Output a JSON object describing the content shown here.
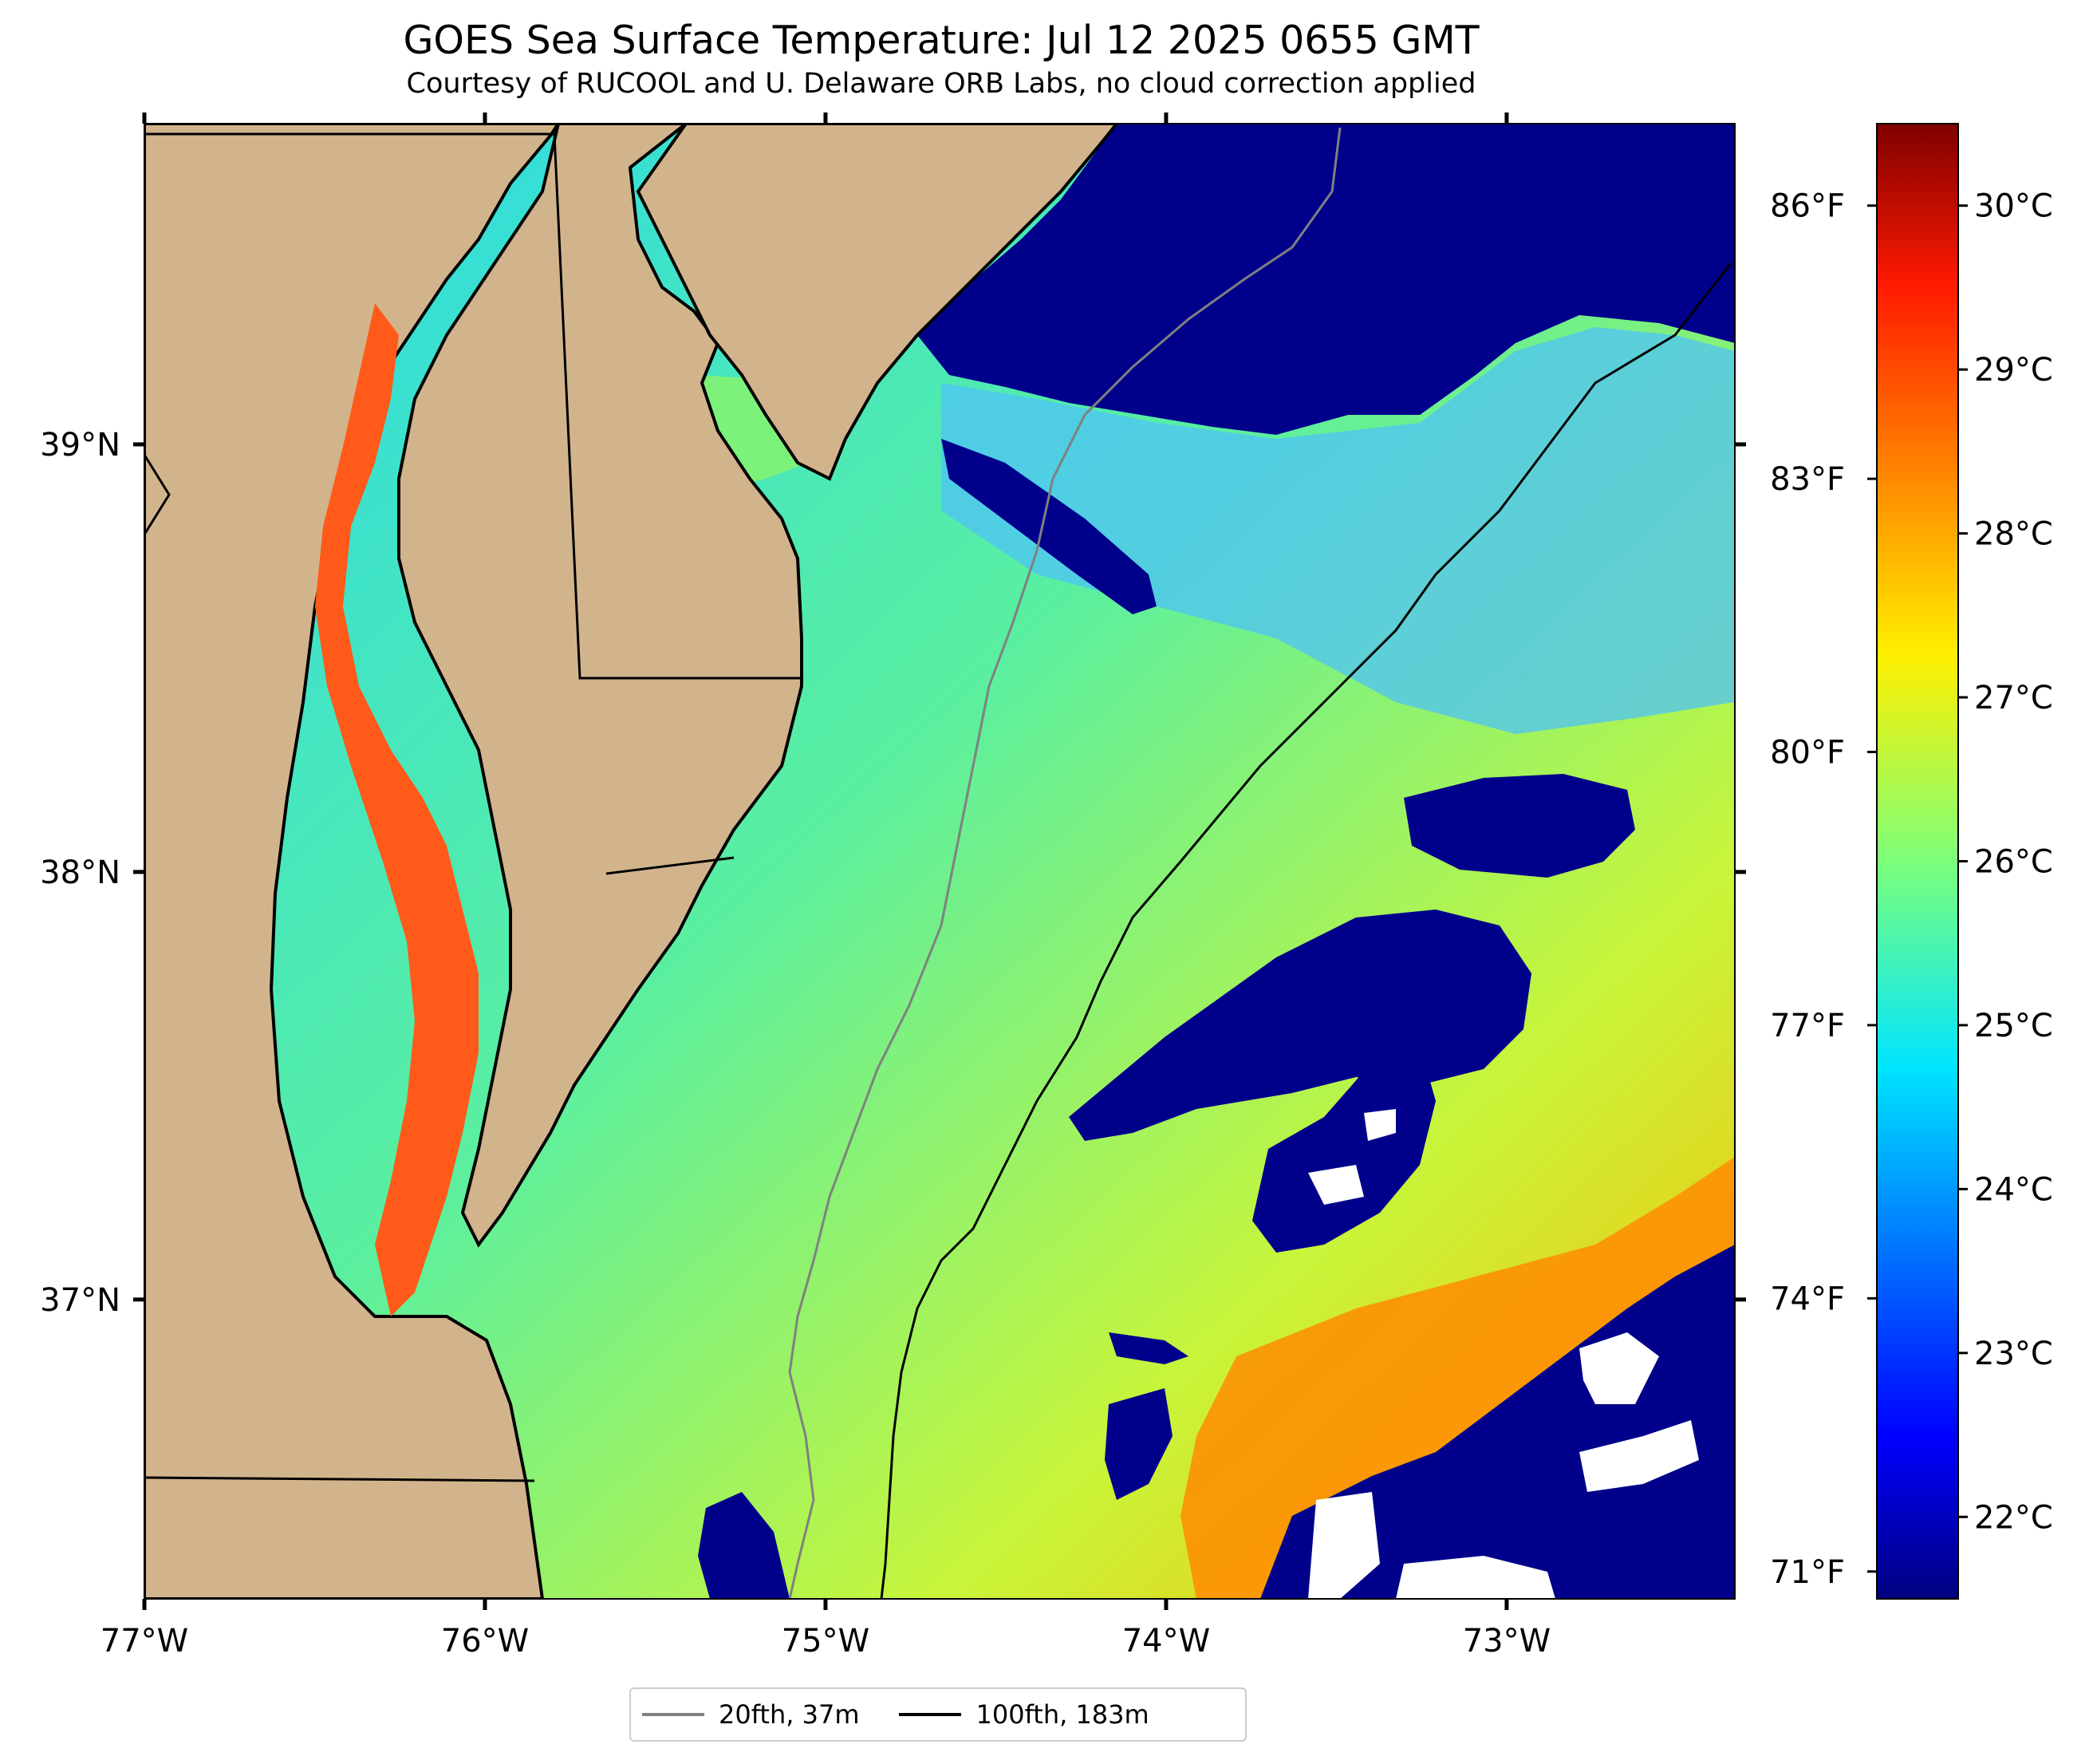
{
  "header": {
    "title": "GOES Sea Surface Temperature: Jul 12 2025 0655 GMT",
    "subtitle": "Courtesy of RUCOOL and U. Delaware ORB Labs, no cloud correction applied"
  },
  "map": {
    "lon_range": [
      -77.0,
      -72.33
    ],
    "lat_range": [
      36.3,
      39.75
    ],
    "lon_ticks": [
      {
        "value": -77,
        "label": "77°W"
      },
      {
        "value": -76,
        "label": "76°W"
      },
      {
        "value": -75,
        "label": "75°W"
      },
      {
        "value": -74,
        "label": "74°W"
      },
      {
        "value": -73,
        "label": "73°W"
      }
    ],
    "lat_ticks": [
      {
        "value": 39,
        "label": "39°N"
      },
      {
        "value": 38,
        "label": "38°N"
      },
      {
        "value": 37,
        "label": "37°N"
      }
    ],
    "colors": {
      "land": "#d2b48c",
      "coast": "#000000",
      "cold_water": "#00008b",
      "isobath_20fth": "#808080",
      "isobath_100fth": "#000000"
    }
  },
  "colorbar": {
    "colormap": "jet",
    "range_c": [
      21.5,
      30.5
    ],
    "celsius_ticks": [
      {
        "value": 22,
        "label": "22°C"
      },
      {
        "value": 23,
        "label": "23°C"
      },
      {
        "value": 24,
        "label": "24°C"
      },
      {
        "value": 25,
        "label": "25°C"
      },
      {
        "value": 26,
        "label": "26°C"
      },
      {
        "value": 27,
        "label": "27°C"
      },
      {
        "value": 28,
        "label": "28°C"
      },
      {
        "value": 29,
        "label": "29°C"
      },
      {
        "value": 30,
        "label": "30°C"
      }
    ],
    "fahrenheit_ticks": [
      {
        "value": 71,
        "label": "71°F"
      },
      {
        "value": 74,
        "label": "74°F"
      },
      {
        "value": 77,
        "label": "77°F"
      },
      {
        "value": 80,
        "label": "80°F"
      },
      {
        "value": 83,
        "label": "83°F"
      },
      {
        "value": 86,
        "label": "86°F"
      }
    ]
  },
  "legend": {
    "items": [
      {
        "label": "20fth, 37m",
        "color": "#808080"
      },
      {
        "label": "100fth, 183m",
        "color": "#000000"
      }
    ]
  }
}
